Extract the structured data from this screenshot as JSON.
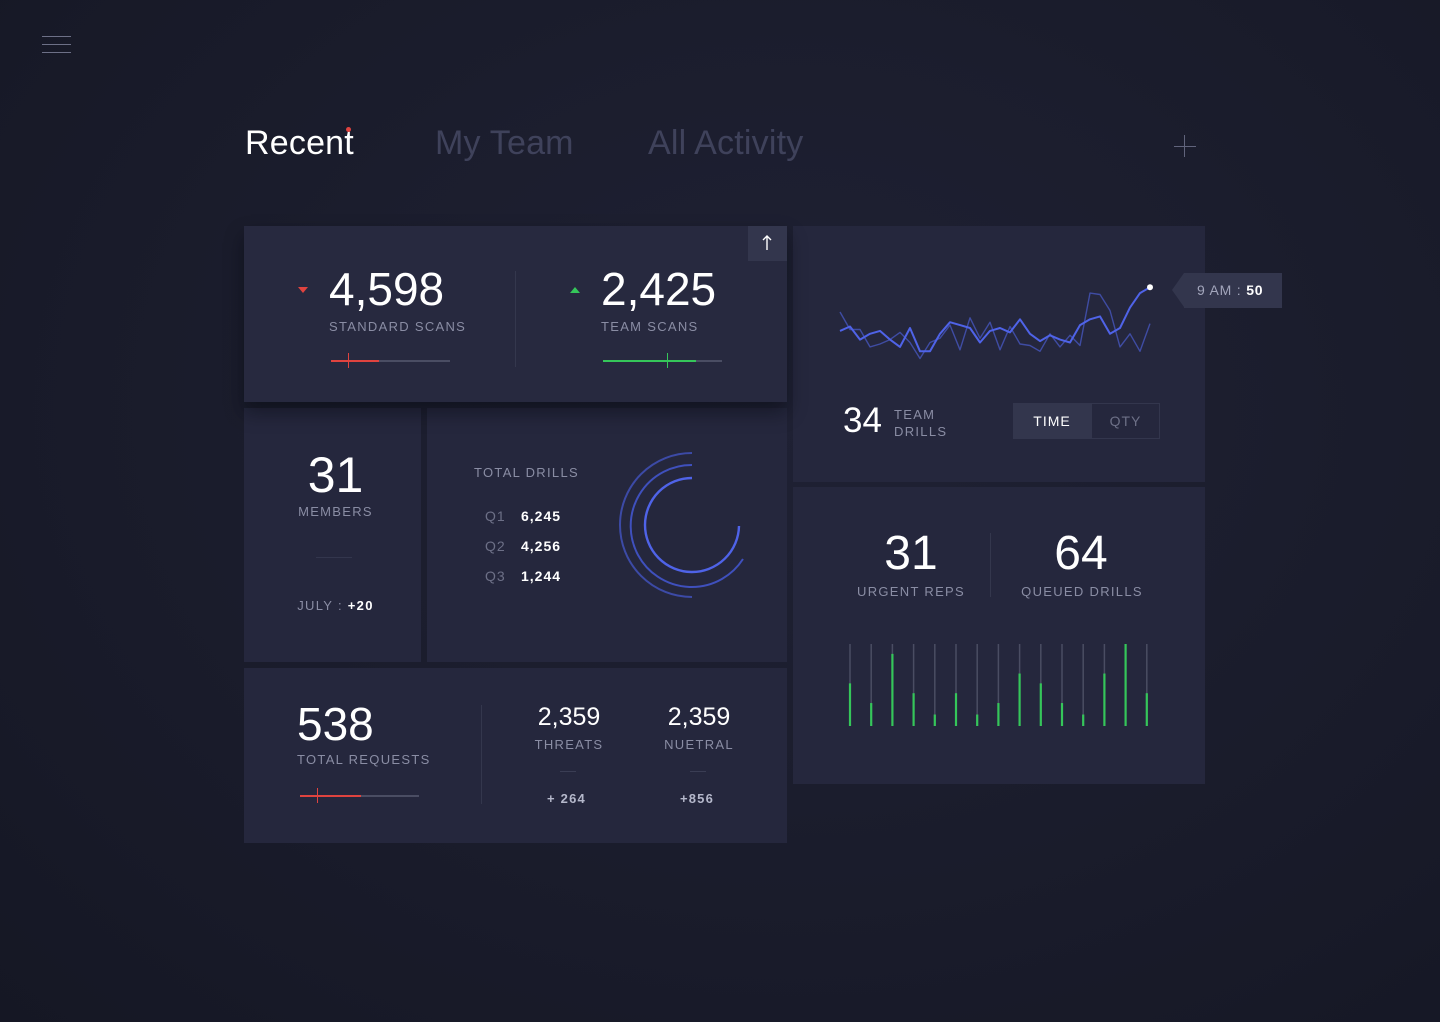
{
  "tabs": [
    {
      "label": "Recent",
      "active": true,
      "has_notification": true
    },
    {
      "label": "My Team",
      "active": false
    },
    {
      "label": "All Activity",
      "active": false
    }
  ],
  "scans": {
    "standard": {
      "value": "4,598",
      "label": "STANDARD SCANS",
      "trend": "down",
      "progress": 0.4,
      "marker": 0.14
    },
    "team": {
      "value": "2,425",
      "label": "TEAM SCANS",
      "trend": "up",
      "progress": 0.78,
      "marker": 0.54
    }
  },
  "members": {
    "value": "31",
    "label": "MEMBERS",
    "month_label": "JULY : ",
    "month_delta": "+20"
  },
  "drills": {
    "label": "TOTAL DRILLS",
    "quarters": [
      {
        "label": "Q1",
        "value": "6,245",
        "raw": 6245
      },
      {
        "label": "Q2",
        "value": "4,256",
        "raw": 4256
      },
      {
        "label": "Q3",
        "value": "1,244",
        "raw": 1244
      }
    ]
  },
  "requests": {
    "value": "538",
    "label": "TOTAL REQUESTS",
    "progress": 0.51,
    "marker": 0.14,
    "threats": {
      "value": "2,359",
      "label": "THREATS",
      "delta": "+ 264"
    },
    "neutral": {
      "value": "2,359",
      "label": "NUETRAL",
      "delta": "+856"
    }
  },
  "team_drills": {
    "value": "34",
    "label_line1": "TEAM",
    "label_line2": "DRILLS",
    "toggle": {
      "time": "TIME",
      "qty": "QTY",
      "selected": "TIME"
    },
    "tooltip": {
      "time": "9 AM : ",
      "value": "50"
    }
  },
  "urgent": {
    "reps": {
      "value": "31",
      "label": "URGENT REPS"
    },
    "queued": {
      "value": "64",
      "label": "QUEUED DRILLS"
    }
  },
  "chart_data": [
    {
      "type": "line",
      "series": [
        {
          "values": [
            20,
            23,
            14,
            18,
            20,
            14,
            9,
            22,
            6,
            6,
            18,
            26,
            24,
            22,
            12,
            20,
            22,
            19,
            28,
            18,
            13,
            17,
            14,
            12,
            24,
            28,
            30,
            18,
            22,
            36,
            46,
            50
          ],
          "color": "#4f63e8"
        },
        {
          "values": [
            33,
            21,
            21,
            9,
            11,
            14,
            19,
            12,
            1,
            12,
            15,
            24,
            7,
            29,
            15,
            26,
            7,
            23,
            11,
            10,
            6,
            18,
            9,
            17,
            10,
            46,
            45,
            34,
            9,
            18,
            6,
            25
          ],
          "color": "#3f4ca3"
        }
      ],
      "highlight": {
        "label": "9 AM",
        "value": 50
      }
    },
    {
      "type": "bar",
      "values": [
        0.52,
        0.28,
        0.88,
        0.4,
        0.14,
        0.4,
        0.14,
        0.28,
        0.64,
        0.52,
        0.28,
        0.14,
        0.64,
        1.0,
        0.4
      ],
      "color": "#35c65a",
      "ylim": [
        0,
        1
      ]
    }
  ]
}
